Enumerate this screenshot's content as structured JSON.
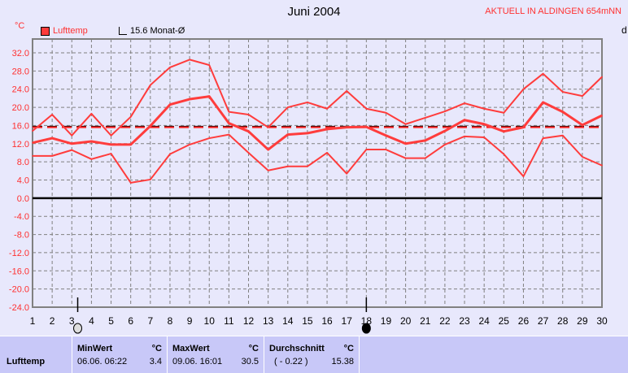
{
  "title": "Juni 2004",
  "station": "AKTUELL IN ALDINGEN 654mNN",
  "unit": "°C",
  "right_label": "d",
  "legend": [
    {
      "label": "Lufttemp",
      "color": "#ff3c3c",
      "filled": true
    },
    {
      "label": "15.6 Monat-Ø",
      "filled": false
    }
  ],
  "chart_data": {
    "type": "line",
    "title": "Juni 2004",
    "ylabel": "°C",
    "x": [
      1,
      2,
      3,
      4,
      5,
      6,
      7,
      8,
      9,
      10,
      11,
      12,
      13,
      14,
      15,
      16,
      17,
      18,
      19,
      20,
      21,
      22,
      23,
      24,
      25,
      26,
      27,
      28,
      29,
      30
    ],
    "ylim": [
      -24,
      32
    ],
    "yticks": [
      "32.0",
      "28.0",
      "24.0",
      "20.0",
      "16.0",
      "12.0",
      "8.0",
      "4.0",
      "0.0",
      "-4.0",
      "-8.0",
      "-12.0",
      "-16.0",
      "-20.0",
      "-24.0"
    ],
    "grid": true,
    "series": [
      {
        "role": "max",
        "color": "#ff3c3c",
        "values": [
          14.8,
          18.4,
          13.8,
          18.6,
          13.8,
          17.9,
          24.9,
          28.8,
          30.5,
          29.3,
          19.0,
          18.4,
          15.6,
          20.0,
          21.1,
          19.7,
          23.6,
          19.7,
          18.8,
          16.3,
          17.7,
          19.1,
          20.9,
          19.7,
          18.8,
          24.0,
          27.4,
          23.4,
          22.5,
          26.7
        ]
      },
      {
        "role": "mean",
        "color": "#ff3c3c",
        "values": [
          12.2,
          13.2,
          12.0,
          12.5,
          11.8,
          11.8,
          15.9,
          20.6,
          21.8,
          22.4,
          16.5,
          14.7,
          10.7,
          14.0,
          14.3,
          15.2,
          15.6,
          15.7,
          13.8,
          12.0,
          12.7,
          14.8,
          17.2,
          16.3,
          14.7,
          15.6,
          21.1,
          19.0,
          16.1,
          18.2
        ]
      },
      {
        "role": "min",
        "color": "#ff3c3c",
        "values": [
          9.3,
          9.3,
          10.6,
          8.6,
          9.8,
          3.4,
          4.1,
          9.7,
          11.8,
          13.2,
          14.0,
          10.0,
          6.1,
          7.0,
          7.0,
          10.0,
          5.4,
          10.7,
          10.7,
          8.8,
          8.8,
          11.8,
          13.6,
          13.4,
          9.7,
          4.8,
          13.2,
          13.8,
          9.1,
          7.2
        ]
      }
    ],
    "monthly_mean": 15.6,
    "moon_phases": [
      {
        "day": 3.3,
        "phase": "full-moon"
      },
      {
        "day": 18,
        "phase": "new-moon"
      }
    ]
  },
  "stats": {
    "row_label": "Lufttemp",
    "min": {
      "header": "MinWert",
      "unit": "°C",
      "date": "06.06.  06:22",
      "value": "3.4"
    },
    "max": {
      "header": "MaxWert",
      "unit": "°C",
      "date": "09.06.  16:01",
      "value": "30.5"
    },
    "avg": {
      "header": "Durchschnitt",
      "unit": "°C",
      "delta": "( - 0.22 )",
      "value": "15.38"
    }
  }
}
